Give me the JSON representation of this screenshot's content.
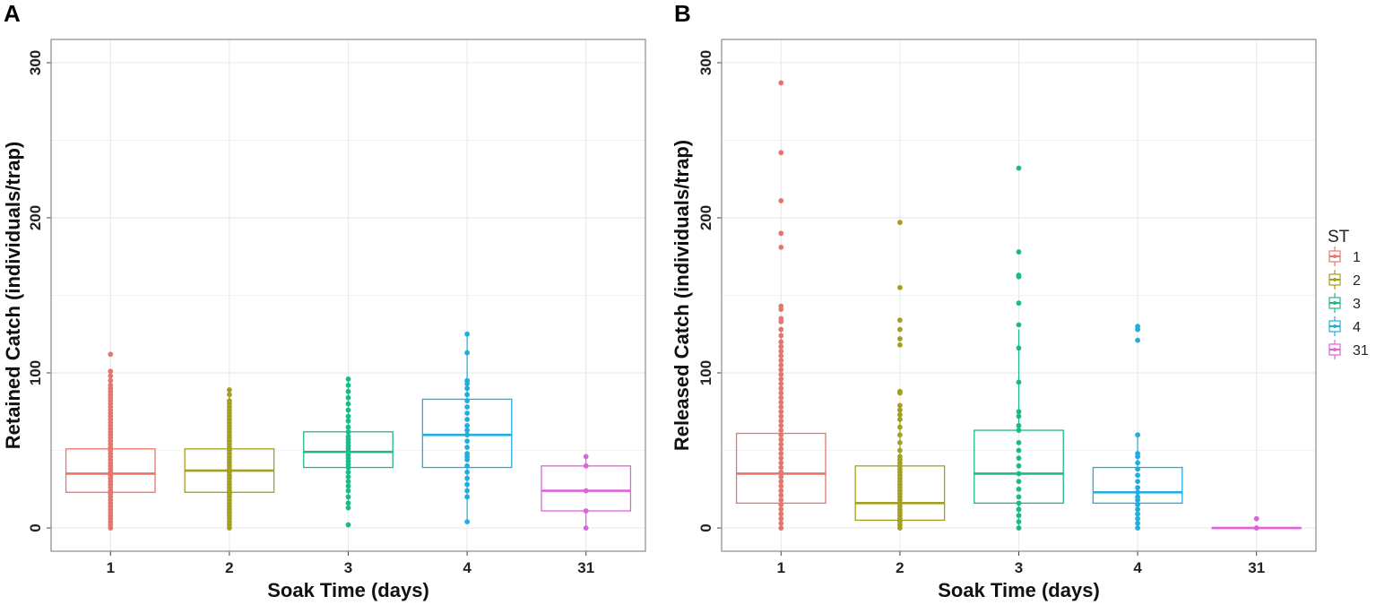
{
  "chart_data": [
    {
      "panel": "A",
      "type": "boxplot",
      "xlabel": "Soak Time (days)",
      "ylabel": "Retained Catch (individuals/trap)",
      "ylim": [
        -15,
        315
      ],
      "yticks": [
        0,
        100,
        200,
        300
      ],
      "categories": [
        "1",
        "2",
        "3",
        "4",
        "31"
      ],
      "boxes": [
        {
          "category": "1",
          "q1": 23,
          "median": 35,
          "q3": 51,
          "whisker_low": 0,
          "whisker_high": 93,
          "points": [
            0,
            2,
            4,
            6,
            8,
            10,
            12,
            14,
            16,
            18,
            20,
            22,
            24,
            26,
            28,
            30,
            32,
            34,
            36,
            38,
            40,
            42,
            44,
            46,
            48,
            50,
            52,
            54,
            56,
            58,
            60,
            62,
            64,
            66,
            68,
            70,
            72,
            74,
            76,
            78,
            80,
            82,
            84,
            86,
            88,
            90,
            92,
            95,
            98,
            101,
            112
          ]
        },
        {
          "category": "2",
          "q1": 23,
          "median": 37,
          "q3": 51,
          "whisker_low": 0,
          "whisker_high": 89,
          "points": [
            0,
            2,
            4,
            6,
            8,
            10,
            12,
            14,
            16,
            18,
            20,
            22,
            24,
            26,
            28,
            30,
            32,
            34,
            36,
            38,
            40,
            42,
            44,
            46,
            48,
            50,
            52,
            54,
            56,
            58,
            60,
            62,
            64,
            66,
            68,
            70,
            72,
            74,
            76,
            78,
            80,
            82,
            86,
            89
          ]
        },
        {
          "category": "3",
          "q1": 39,
          "median": 49,
          "q3": 62,
          "whisker_low": 13,
          "whisker_high": 96,
          "points": [
            2,
            13,
            16,
            20,
            24,
            27,
            30,
            33,
            36,
            39,
            41,
            43,
            45,
            47,
            49,
            51,
            53,
            55,
            57,
            59,
            62,
            65,
            69,
            72,
            76,
            80,
            84,
            88,
            92,
            96
          ]
        },
        {
          "category": "4",
          "q1": 39,
          "median": 60,
          "q3": 83,
          "whisker_low": 4,
          "whisker_high": 125,
          "points": [
            4,
            20,
            24,
            28,
            32,
            36,
            40,
            44,
            46,
            48,
            52,
            56,
            60,
            63,
            66,
            70,
            74,
            78,
            82,
            86,
            90,
            93,
            95,
            113,
            125
          ]
        },
        {
          "category": "31",
          "q1": 11,
          "median": 24,
          "q3": 40,
          "whisker_low": 0,
          "whisker_high": 46,
          "points": [
            0,
            11,
            24,
            40,
            46
          ]
        }
      ]
    },
    {
      "panel": "B",
      "type": "boxplot",
      "xlabel": "Soak Time (days)",
      "ylabel": "Released Catch (individuals/trap)",
      "ylim": [
        -15,
        315
      ],
      "yticks": [
        0,
        100,
        200,
        300
      ],
      "categories": [
        "1",
        "2",
        "3",
        "4",
        "31"
      ],
      "legend": {
        "title": "ST",
        "position": "right",
        "labels": [
          "1",
          "2",
          "3",
          "4",
          "31"
        ]
      },
      "boxes": [
        {
          "category": "1",
          "q1": 16,
          "median": 35,
          "q3": 61,
          "whisker_low": 0,
          "whisker_high": 128,
          "points": [
            0,
            3,
            6,
            9,
            12,
            15,
            18,
            21,
            24,
            27,
            30,
            33,
            36,
            39,
            42,
            45,
            48,
            51,
            54,
            57,
            60,
            63,
            66,
            69,
            72,
            75,
            78,
            81,
            84,
            87,
            90,
            93,
            96,
            99,
            102,
            105,
            108,
            111,
            114,
            117,
            120,
            124,
            128,
            133,
            135,
            141,
            143,
            181,
            190,
            211,
            242,
            287
          ]
        },
        {
          "category": "2",
          "q1": 5,
          "median": 16,
          "q3": 40,
          "whisker_low": 0,
          "whisker_high": 73,
          "points": [
            0,
            2,
            4,
            6,
            8,
            10,
            12,
            14,
            16,
            18,
            20,
            22,
            24,
            26,
            28,
            30,
            32,
            34,
            36,
            38,
            40,
            42,
            44,
            46,
            50,
            55,
            60,
            65,
            70,
            73,
            76,
            79,
            87,
            88,
            118,
            122,
            128,
            134,
            155,
            197
          ]
        },
        {
          "category": "3",
          "q1": 16,
          "median": 35,
          "q3": 63,
          "whisker_low": 0,
          "whisker_high": 128,
          "points": [
            0,
            4,
            8,
            12,
            16,
            20,
            25,
            30,
            35,
            40,
            45,
            50,
            55,
            63,
            66,
            72,
            75,
            94,
            116,
            131,
            145,
            162,
            163,
            178,
            232
          ]
        },
        {
          "category": "4",
          "q1": 16,
          "median": 23,
          "q3": 39,
          "whisker_low": 0,
          "whisker_high": 60,
          "points": [
            0,
            3,
            6,
            9,
            12,
            15,
            18,
            20,
            23,
            26,
            30,
            34,
            38,
            42,
            46,
            48,
            60,
            121,
            128,
            130
          ]
        },
        {
          "category": "31",
          "q1": 0,
          "median": 0,
          "q3": 0,
          "whisker_low": 0,
          "whisker_high": 0,
          "points": [
            0,
            6
          ]
        }
      ]
    }
  ],
  "colors": {
    "1": "#e8746c",
    "2": "#a3a020",
    "3": "#1fb88a",
    "4": "#1eaee0",
    "31": "#e062dc",
    "grid": "#ebebeb",
    "border": "#8a8a8a",
    "background": "#ffffff"
  }
}
